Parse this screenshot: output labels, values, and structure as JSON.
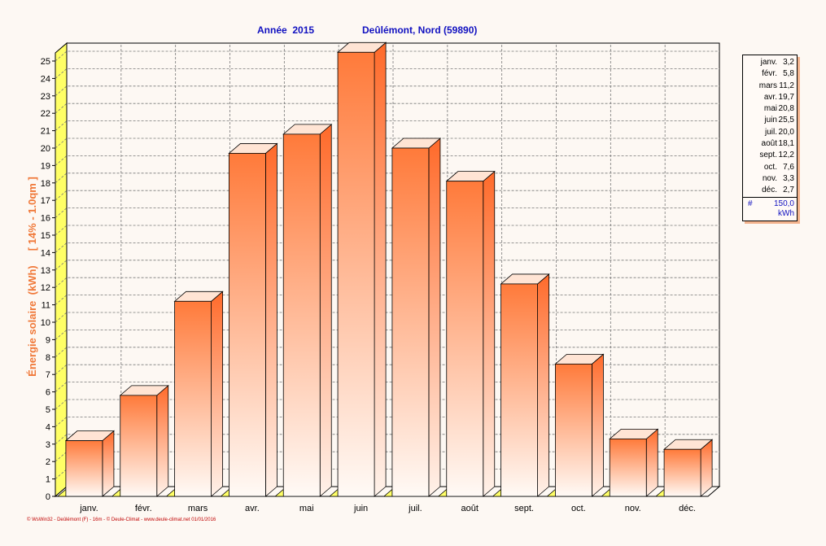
{
  "header": {
    "year_label": "Année  2015",
    "station_label": "Deûlémont, Nord (59890)"
  },
  "chart_data": {
    "type": "bar",
    "title": "Année  2015",
    "subtitle": "Deûlémont, Nord (59890)",
    "ylabel": "Énergie solaire  (kWh)     [ 14% - 1.0qm ]",
    "xlabel": "",
    "ylim": [
      0,
      25
    ],
    "yticks": [
      0,
      1,
      2,
      3,
      4,
      5,
      6,
      7,
      8,
      9,
      10,
      11,
      12,
      13,
      14,
      15,
      16,
      17,
      18,
      19,
      20,
      21,
      22,
      23,
      24,
      25
    ],
    "grid": true,
    "categories": [
      "janv.",
      "févr.",
      "mars",
      "avr.",
      "mai",
      "juin",
      "juil.",
      "août",
      "sept.",
      "oct.",
      "nov.",
      "déc."
    ],
    "values": [
      3.2,
      5.8,
      11.2,
      19.7,
      20.8,
      25.5,
      20.0,
      18.1,
      12.2,
      7.6,
      3.3,
      2.7
    ],
    "legend_position": "right"
  },
  "legend": {
    "items": [
      {
        "month": "janv.",
        "value": "3,2"
      },
      {
        "month": "févr.",
        "value": "5,8"
      },
      {
        "month": "mars",
        "value": "11,2"
      },
      {
        "month": "avr.",
        "value": "19,7"
      },
      {
        "month": "mai",
        "value": "20,8"
      },
      {
        "month": "juin",
        "value": "25,5"
      },
      {
        "month": "juil.",
        "value": "20,0"
      },
      {
        "month": "août",
        "value": "18,1"
      },
      {
        "month": "sept.",
        "value": "12,2"
      },
      {
        "month": "oct.",
        "value": "7,6"
      },
      {
        "month": "nov.",
        "value": "3,3"
      },
      {
        "month": "déc.",
        "value": "2,7"
      }
    ],
    "total_symbol": "#",
    "total_value": "150,0",
    "total_unit": "kWh"
  },
  "footer": {
    "credit": "© WsWin32  -  Deûlémont (F) - 16m  -  © Deule-Climat - www.deule-climat.net  01/01/2016"
  },
  "colors": {
    "bar_top": "#ff7a3a",
    "bar_bottom": "#fffaf6",
    "bar_side": "#ff6a2a",
    "floor": "#ffff66",
    "title": "#1010c0",
    "ylabel": "#f07838",
    "footer": "#c00000",
    "background": "#fdf8f3"
  }
}
